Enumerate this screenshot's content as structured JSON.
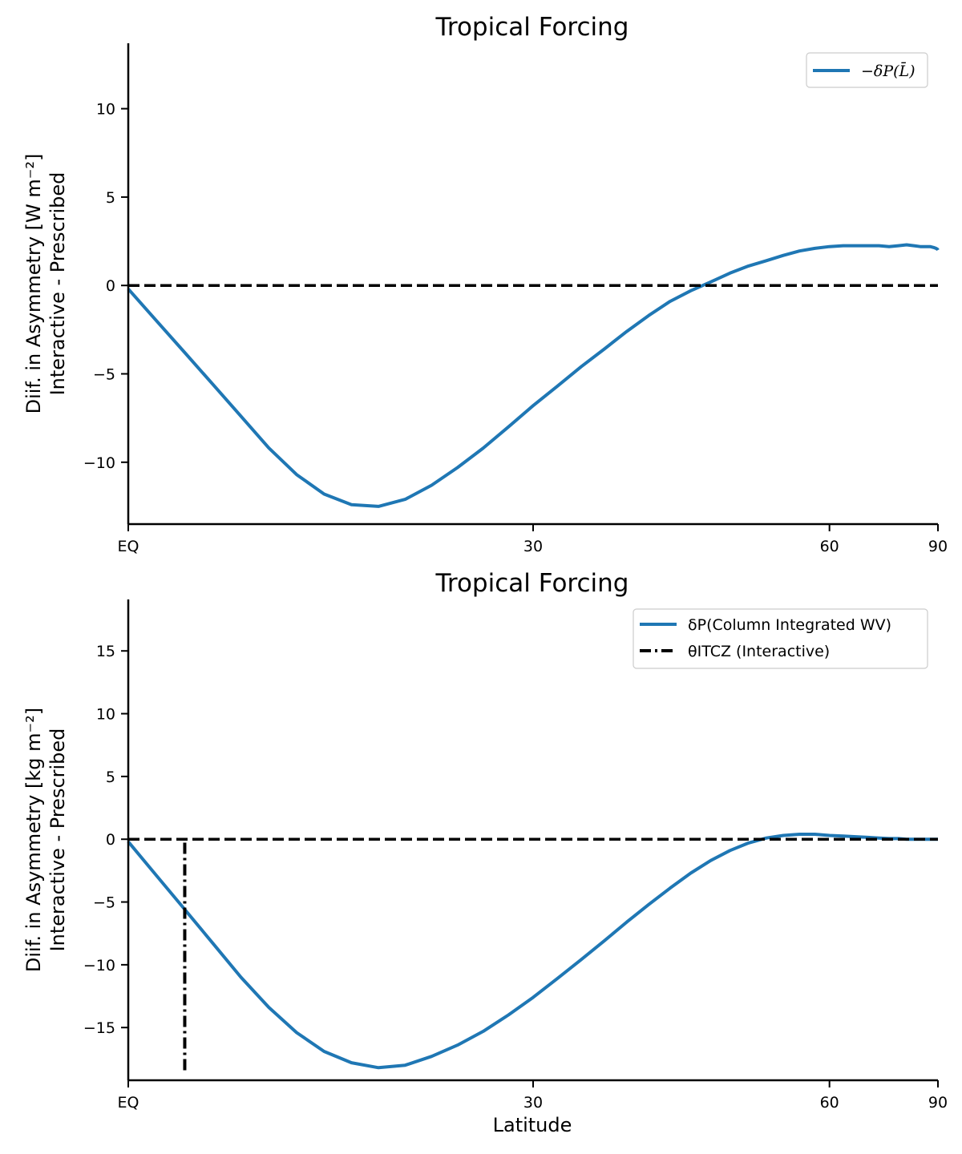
{
  "chart_data": [
    {
      "type": "line",
      "title": "Tropical Forcing",
      "ylabel_line1": "Diif. in Asymmetry [W m⁻²]",
      "ylabel_line2": "Interactive - Prescribed",
      "xlabel": "",
      "xscale": "sine-latitude",
      "xlim": [
        0,
        90
      ],
      "ylim": [
        -13.5,
        13.7
      ],
      "xticks": [
        {
          "value": 0,
          "label": "EQ"
        },
        {
          "value": 30,
          "label": "30"
        },
        {
          "value": 60,
          "label": "60"
        },
        {
          "value": 90,
          "label": "90"
        }
      ],
      "yticks": [
        {
          "value": 10,
          "label": "10"
        },
        {
          "value": 5,
          "label": "5"
        },
        {
          "value": 0,
          "label": "0"
        },
        {
          "value": -5,
          "label": "−5"
        },
        {
          "value": -10,
          "label": "−10"
        }
      ],
      "legend_position": "upper right",
      "series": [
        {
          "name": "−δP(L̄)",
          "color": "#1f77b4",
          "style": "solid",
          "x": [
            0,
            2,
            4,
            6,
            8,
            10,
            12,
            14,
            16,
            18,
            20,
            22,
            24,
            26,
            28,
            30,
            32,
            34,
            36,
            38,
            40,
            42,
            44,
            46,
            48,
            50,
            52,
            54,
            56,
            58,
            60,
            62,
            64,
            66,
            68,
            70,
            72,
            74,
            76,
            78,
            80,
            82,
            84,
            86,
            88,
            90
          ],
          "y": [
            -0.2,
            -2.0,
            -3.8,
            -5.6,
            -7.4,
            -9.2,
            -10.7,
            -11.8,
            -12.4,
            -12.5,
            -12.1,
            -11.3,
            -10.3,
            -9.2,
            -8.0,
            -6.8,
            -5.7,
            -4.6,
            -3.6,
            -2.6,
            -1.7,
            -0.9,
            -0.3,
            0.2,
            0.7,
            1.1,
            1.4,
            1.7,
            1.95,
            2.1,
            2.2,
            2.25,
            2.25,
            2.25,
            2.25,
            2.2,
            2.25,
            2.3,
            2.25,
            2.2,
            2.2,
            2.2,
            2.15,
            2.1,
            2.05,
            2.0
          ]
        },
        {
          "name": "",
          "color": "#000000",
          "style": "dashed",
          "x": [
            0,
            90
          ],
          "y": [
            0,
            0
          ]
        }
      ]
    },
    {
      "type": "line",
      "title": "Tropical Forcing",
      "ylabel_line1": "Diif. in Asymmetry [kg m⁻²]",
      "ylabel_line2": "Interactive - Prescribed",
      "xlabel": "Latitude",
      "xscale": "sine-latitude",
      "xlim": [
        0,
        90
      ],
      "ylim": [
        -19.2,
        19.1
      ],
      "xticks": [
        {
          "value": 0,
          "label": "EQ"
        },
        {
          "value": 30,
          "label": "30"
        },
        {
          "value": 60,
          "label": "60"
        },
        {
          "value": 90,
          "label": "90"
        }
      ],
      "yticks": [
        {
          "value": 15,
          "label": "15"
        },
        {
          "value": 10,
          "label": "10"
        },
        {
          "value": 5,
          "label": "5"
        },
        {
          "value": 0,
          "label": "0"
        },
        {
          "value": -5,
          "label": "−5"
        },
        {
          "value": -10,
          "label": "−10"
        },
        {
          "value": -15,
          "label": "−15"
        }
      ],
      "legend_position": "upper right",
      "series": [
        {
          "name": "δP(Column Integrated WV)",
          "color": "#1f77b4",
          "style": "solid",
          "x": [
            0,
            2,
            4,
            6,
            8,
            10,
            12,
            14,
            16,
            18,
            20,
            22,
            24,
            26,
            28,
            30,
            32,
            34,
            36,
            38,
            40,
            42,
            44,
            46,
            48,
            50,
            52,
            54,
            56,
            58,
            60,
            62,
            64,
            66,
            68,
            70,
            72,
            74,
            76,
            78,
            80,
            82,
            84,
            86,
            88,
            90
          ],
          "y": [
            -0.2,
            -2.9,
            -5.6,
            -8.3,
            -11.0,
            -13.4,
            -15.4,
            -16.9,
            -17.8,
            -18.2,
            -18.0,
            -17.3,
            -16.4,
            -15.3,
            -14.0,
            -12.6,
            -11.1,
            -9.6,
            -8.1,
            -6.6,
            -5.2,
            -3.9,
            -2.7,
            -1.7,
            -0.9,
            -0.3,
            0.1,
            0.3,
            0.4,
            0.4,
            0.3,
            0.25,
            0.2,
            0.15,
            0.1,
            0.05,
            0.05,
            0.0,
            0.0,
            0.0,
            0.0,
            0.0,
            0.0,
            0.0,
            0.0,
            0.0
          ]
        },
        {
          "name": "",
          "color": "#000000",
          "style": "dashed",
          "x": [
            0,
            90
          ],
          "y": [
            0,
            0
          ]
        },
        {
          "name": "θITCZ (Interactive)",
          "color": "#000000",
          "style": "dashdot",
          "vertical_x": 4.0,
          "y_range": [
            -18.4,
            0
          ]
        }
      ]
    }
  ]
}
